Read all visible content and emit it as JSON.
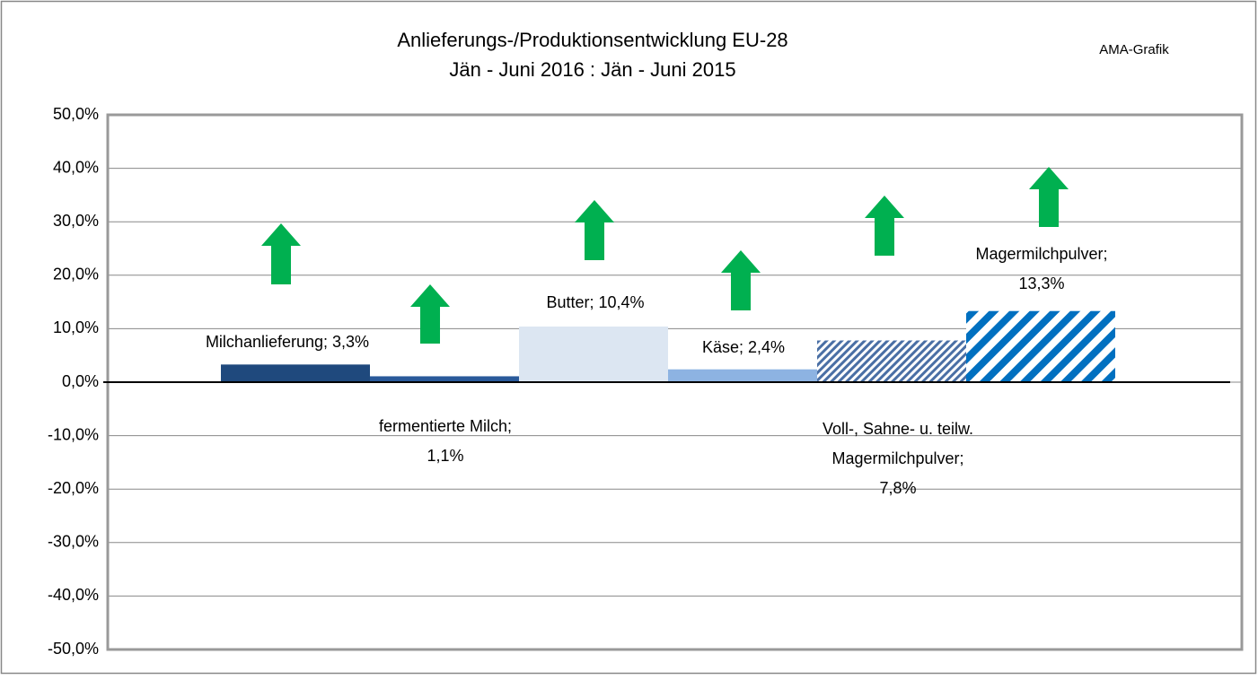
{
  "chart_data": {
    "type": "bar",
    "title": "Anlieferungs-/Produktionsentwicklung EU-28",
    "subtitle": "Jän - Juni 2016 : Jän - Juni 2015",
    "annotation": "AMA-Grafik",
    "values": [
      3.3,
      1.1,
      10.4,
      2.4,
      7.8,
      13.3
    ],
    "value_labels": [
      [
        "Milchanlieferung; 3,3%"
      ],
      [
        "fermentierte Milch;",
        "1,1%"
      ],
      [
        "Butter; 10,4%"
      ],
      [
        "Käse; 2,4%"
      ],
      [
        "Voll-, Sahne- u. teilw.",
        "Magermilchpulver;",
        "7,8%"
      ],
      [
        "Magermilchpulver;",
        "13,3%"
      ]
    ],
    "colors": [
      "#1f497d",
      "#2a5a9a",
      "#dce6f2",
      "#8db3e2",
      "#4a6fa5",
      "#0070c0"
    ],
    "patterns": [
      "solid",
      "solid",
      "solid",
      "solid",
      "dense-diagonal",
      "wide-diagonal"
    ],
    "ylim": [
      -50,
      50
    ],
    "yticks": [
      {
        "value": -50,
        "label": "-50,0%"
      },
      {
        "value": -40,
        "label": "-40,0%"
      },
      {
        "value": -30,
        "label": "-30,0%"
      },
      {
        "value": -20,
        "label": "-20,0%"
      },
      {
        "value": -10,
        "label": "-10,0%"
      },
      {
        "value": 0,
        "label": "0,0%"
      },
      {
        "value": 10,
        "label": "10,0%"
      },
      {
        "value": 20,
        "label": "20,0%"
      },
      {
        "value": 30,
        "label": "30,0%"
      },
      {
        "value": 40,
        "label": "40,0%"
      },
      {
        "value": 50,
        "label": "50,0%"
      }
    ],
    "grid": true
  }
}
